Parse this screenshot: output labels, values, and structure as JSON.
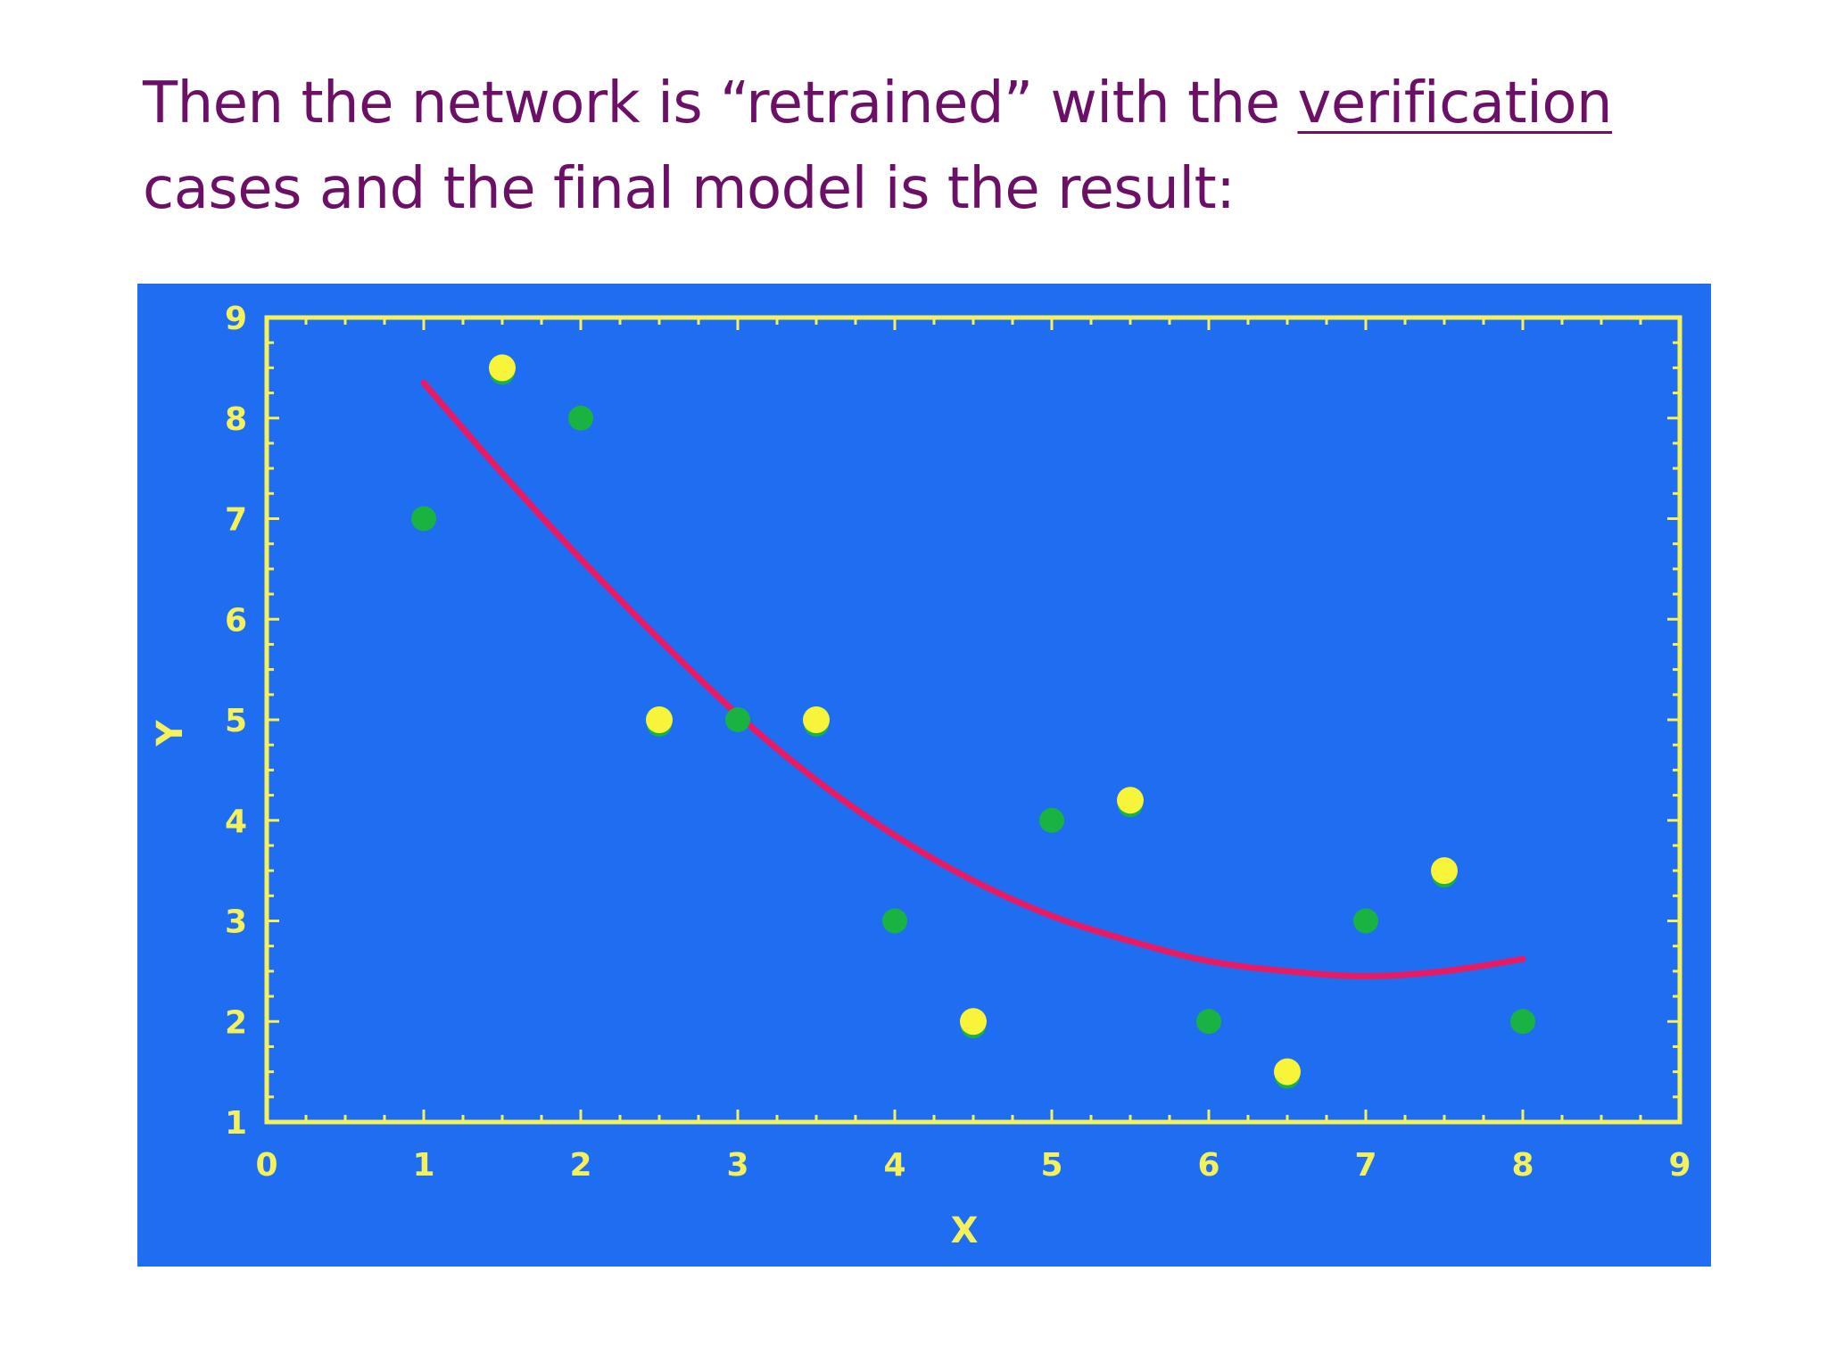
{
  "heading": {
    "line1_prefix": "Then the network is “retrained” with the ",
    "line1_underlined": "verification",
    "line2": "cases and the final model is the result:"
  },
  "chart_data": {
    "type": "scatter",
    "title": "",
    "xlabel": "X",
    "ylabel": "Y",
    "xlim": [
      0,
      9
    ],
    "ylim": [
      1,
      9
    ],
    "x_ticks": [
      "0",
      "1",
      "2",
      "3",
      "4",
      "5",
      "6",
      "7",
      "8",
      "9"
    ],
    "y_ticks": [
      "1",
      "2",
      "3",
      "4",
      "5",
      "6",
      "7",
      "8",
      "9"
    ],
    "grid": false,
    "colors": {
      "background": "#1f6ef2",
      "axes": "#f5f15a",
      "training_points": "#19b341",
      "verification_points": "#f7f43a",
      "model_curve": "#e81a63"
    },
    "series": [
      {
        "kind": "points",
        "color_key": "training_points",
        "points": [
          {
            "x": 1,
            "y": 7
          },
          {
            "x": 2,
            "y": 8
          },
          {
            "x": 3,
            "y": 5
          },
          {
            "x": 4,
            "y": 3
          },
          {
            "x": 5,
            "y": 4
          },
          {
            "x": 6,
            "y": 2
          },
          {
            "x": 7,
            "y": 3
          },
          {
            "x": 8,
            "y": 2
          }
        ]
      },
      {
        "kind": "points",
        "color_key": "verification_points",
        "points": [
          {
            "x": 1.5,
            "y": 8.5
          },
          {
            "x": 2.5,
            "y": 5
          },
          {
            "x": 3.5,
            "y": 5
          },
          {
            "x": 4.5,
            "y": 2
          },
          {
            "x": 5.5,
            "y": 4.2
          },
          {
            "x": 6.5,
            "y": 1.5
          },
          {
            "x": 7.5,
            "y": 3.5
          }
        ]
      },
      {
        "kind": "curve",
        "color_key": "model_curve",
        "points": [
          {
            "x": 1.0,
            "y": 8.35
          },
          {
            "x": 1.5,
            "y": 7.45
          },
          {
            "x": 2.0,
            "y": 6.6
          },
          {
            "x": 2.5,
            "y": 5.8
          },
          {
            "x": 3.0,
            "y": 5.05
          },
          {
            "x": 3.5,
            "y": 4.4
          },
          {
            "x": 4.0,
            "y": 3.85
          },
          {
            "x": 4.5,
            "y": 3.4
          },
          {
            "x": 5.0,
            "y": 3.05
          },
          {
            "x": 5.5,
            "y": 2.8
          },
          {
            "x": 6.0,
            "y": 2.6
          },
          {
            "x": 6.5,
            "y": 2.5
          },
          {
            "x": 7.0,
            "y": 2.45
          },
          {
            "x": 7.5,
            "y": 2.5
          },
          {
            "x": 8.0,
            "y": 2.62
          }
        ]
      }
    ]
  }
}
